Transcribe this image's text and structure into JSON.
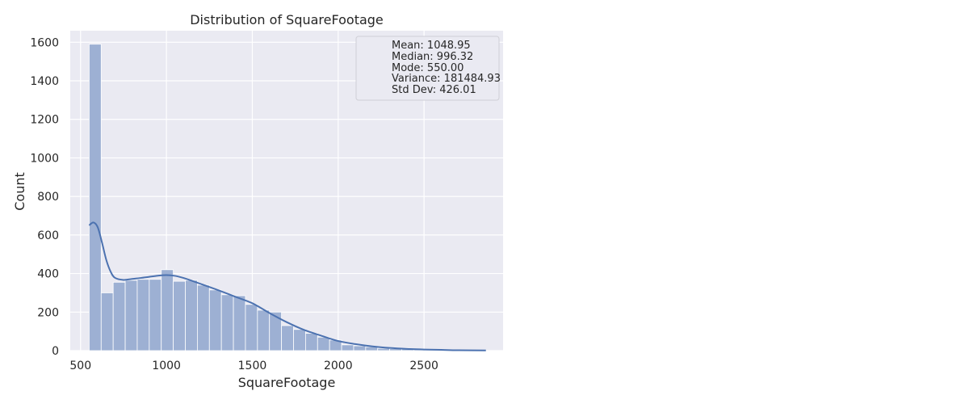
{
  "chart_data": {
    "type": "bar",
    "title": "Distribution of SquareFootage",
    "xlabel": "SquareFootage",
    "ylabel": "Count",
    "xlim": [
      440,
      2960
    ],
    "ylim": [
      0,
      1660
    ],
    "xticks": [
      500,
      1000,
      1500,
      2000,
      2500
    ],
    "yticks": [
      0,
      200,
      400,
      600,
      800,
      1000,
      1200,
      1400,
      1600
    ],
    "grid": true,
    "legend_position": "top-right",
    "bins": {
      "edges": [
        550,
        620,
        690,
        760,
        830,
        900,
        970,
        1040,
        1110,
        1180,
        1250,
        1320,
        1390,
        1460,
        1530,
        1600,
        1670,
        1740,
        1810,
        1880,
        1950,
        2020,
        2090,
        2160,
        2230,
        2300,
        2370,
        2440,
        2510,
        2580,
        2650,
        2720,
        2790,
        2860
      ],
      "counts": [
        1590,
        300,
        355,
        365,
        370,
        370,
        420,
        360,
        365,
        340,
        315,
        290,
        285,
        240,
        210,
        200,
        130,
        110,
        90,
        70,
        55,
        30,
        25,
        20,
        12,
        10,
        8,
        6,
        5,
        4,
        3,
        2,
        1
      ]
    },
    "kde": {
      "x": [
        550,
        575,
        600,
        625,
        650,
        675,
        700,
        750,
        800,
        850,
        900,
        950,
        1000,
        1050,
        1100,
        1150,
        1200,
        1300,
        1400,
        1500,
        1600,
        1700,
        1800,
        1900,
        2000,
        2100,
        2200,
        2300,
        2400,
        2500,
        2600,
        2700,
        2860
      ],
      "y": [
        650,
        665,
        640,
        560,
        470,
        410,
        378,
        367,
        372,
        377,
        383,
        389,
        392,
        388,
        377,
        362,
        346,
        314,
        280,
        246,
        195,
        148,
        108,
        78,
        50,
        34,
        22,
        14,
        9,
        6,
        4,
        2,
        1
      ]
    },
    "stats_box": [
      "Mean: 1048.95",
      "Median: 996.32",
      "Mode: 550.00",
      "Variance: 181484.93",
      "Std Dev: 426.01"
    ],
    "colors": {
      "background": "#eaeaf2",
      "grid": "#ffffff",
      "bar_fill": "#9db0d3",
      "bar_edge": "#ffffff",
      "kde_line": "#4c72b0"
    }
  }
}
